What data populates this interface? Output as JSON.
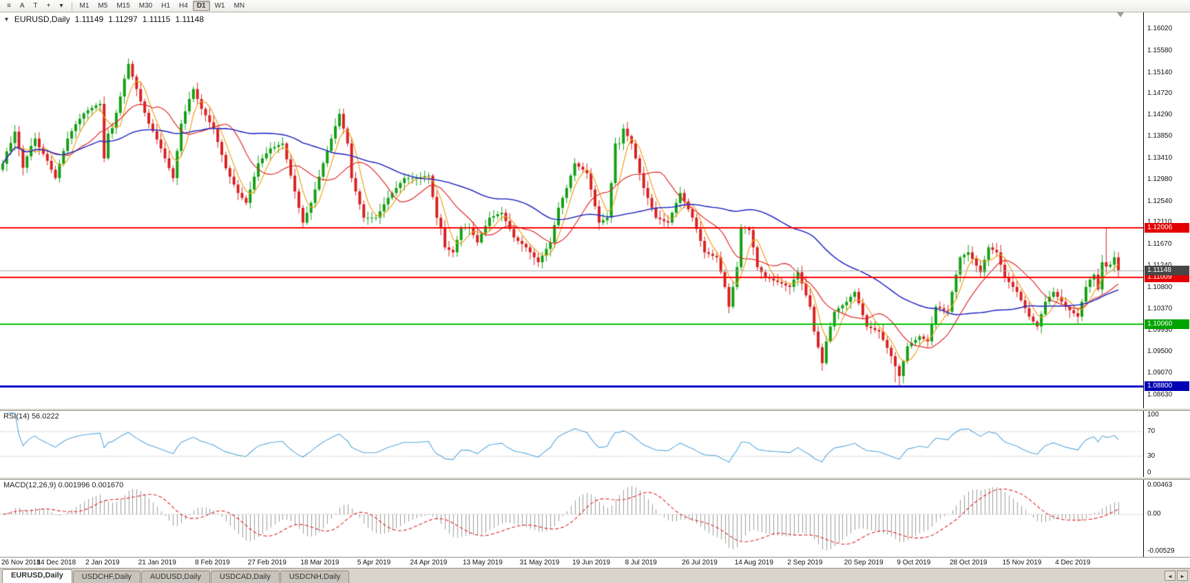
{
  "toolbar": {
    "buttons": [
      {
        "name": "menu",
        "glyph": "≡"
      },
      {
        "name": "cursor",
        "glyph": "A"
      },
      {
        "name": "text",
        "glyph": "T"
      },
      {
        "name": "draw",
        "glyph": "+"
      },
      {
        "name": "more",
        "glyph": "▾"
      }
    ],
    "timeframes": [
      "M1",
      "M5",
      "M15",
      "M30",
      "H1",
      "H4",
      "D1",
      "W1",
      "MN"
    ],
    "active_timeframe": "D1"
  },
  "header": {
    "collapse_glyph": "▼",
    "symbol": "EURUSD,Daily",
    "open": "1.11149",
    "high": "1.11297",
    "low": "1.11115",
    "close": "1.11148"
  },
  "price_axis": {
    "ticks": [
      "1.16020",
      "1.15580",
      "1.15140",
      "1.14720",
      "1.14290",
      "1.13850",
      "1.13410",
      "1.12980",
      "1.12540",
      "1.12110",
      "1.11670",
      "1.11240",
      "1.10800",
      "1.10370",
      "1.09930",
      "1.09500",
      "1.09070",
      "1.08630"
    ]
  },
  "hlines": [
    {
      "price": 1.12006,
      "label": "1.12006",
      "color": "#ff0000",
      "badge": "#e40000",
      "width": 2
    },
    {
      "price": 1.11009,
      "label": "1.11009",
      "color": "#ff0000",
      "badge": "#e40000",
      "width": 2
    },
    {
      "price": 1.1006,
      "label": "1.10060",
      "color": "#00c000",
      "badge": "#00a400",
      "width": 2
    },
    {
      "price": 1.088,
      "label": "1.08800",
      "color": "#0000c8",
      "badge": "#0000b4",
      "width": 3
    }
  ],
  "current_price": {
    "price": 1.11148,
    "label": "1.11148",
    "line_color": "#aaaaaa",
    "badge": "#464646"
  },
  "chart_data": {
    "type": "candlestick",
    "symbol": "EURUSD",
    "period": "Daily",
    "up_color": "#13a013",
    "down_color": "#d92222",
    "closes": [
      1.133,
      1.1355,
      1.1372,
      1.1395,
      1.136,
      1.1322,
      1.1345,
      1.1366,
      1.1381,
      1.1363,
      1.135,
      1.1336,
      1.1318,
      1.1301,
      1.133,
      1.1356,
      1.1381,
      1.1396,
      1.141,
      1.1421,
      1.1432,
      1.1438,
      1.1443,
      1.1448,
      1.1451,
      1.1341,
      1.1391,
      1.1402,
      1.1433,
      1.1466,
      1.1502,
      1.1532,
      1.1506,
      1.1481,
      1.1456,
      1.1433,
      1.1411,
      1.1396,
      1.1379,
      1.1361,
      1.1341,
      1.1321,
      1.1301,
      1.1356,
      1.1411,
      1.1436,
      1.1461,
      1.1481,
      1.1461,
      1.1441,
      1.1428,
      1.1414,
      1.1401,
      1.1374,
      1.1348,
      1.1321,
      1.1304,
      1.1288,
      1.1271,
      1.1261,
      1.1251,
      1.1278,
      1.1304,
      1.1331,
      1.1341,
      1.1351,
      1.1361,
      1.1364,
      1.1368,
      1.1371,
      1.1339,
      1.1306,
      1.1274,
      1.1241,
      1.1211,
      1.1231,
      1.1251,
      1.1278,
      1.1304,
      1.1331,
      1.1356,
      1.1381,
      1.1406,
      1.1431,
      1.1401,
      1.1371,
      1.1301,
      1.1274,
      1.1248,
      1.1221,
      1.1221,
      1.1221,
      1.1221,
      1.1234,
      1.1248,
      1.1261,
      1.1271,
      1.1281,
      1.1291,
      1.1301,
      1.1301,
      1.1301,
      1.1301,
      1.1303,
      1.1305,
      1.1306,
      1.1263,
      1.1221,
      1.1201,
      1.1161,
      1.1156,
      1.1151,
      1.1176,
      1.1201,
      1.1201,
      1.1201,
      1.1186,
      1.1171,
      1.1188,
      1.1204,
      1.1221,
      1.1224,
      1.1228,
      1.1231,
      1.1214,
      1.1198,
      1.1181,
      1.1174,
      1.1168,
      1.1161,
      1.1151,
      1.1141,
      1.1131,
      1.1144,
      1.1158,
      1.1171,
      1.1206,
      1.1241,
      1.1261,
      1.1281,
      1.1306,
      1.1331,
      1.1324,
      1.1318,
      1.1311,
      1.1278,
      1.1244,
      1.1211,
      1.1216,
      1.1221,
      1.1291,
      1.1371,
      1.1371,
      1.1401,
      1.1386,
      1.1371,
      1.1341,
      1.1311,
      1.1281,
      1.1261,
      1.1241,
      1.1221,
      1.1218,
      1.1214,
      1.1211,
      1.1231,
      1.1251,
      1.1271,
      1.1254,
      1.1238,
      1.1221,
      1.1198,
      1.1174,
      1.1151,
      1.1148,
      1.1144,
      1.1141,
      1.1111,
      1.1081,
      1.1041,
      1.1081,
      1.1121,
      1.1201,
      1.1201,
      1.1196,
      1.1161,
      1.1121,
      1.1111,
      1.1101,
      1.1098,
      1.1094,
      1.1091,
      1.1088,
      1.1084,
      1.1081,
      1.1096,
      1.1111,
      1.1088,
      1.1064,
      1.1041,
      1.0991,
      1.0959,
      1.0927,
      1.0971,
      1.1001,
      1.1031,
      1.1038,
      1.1044,
      1.1051,
      1.1061,
      1.1071,
      1.1048,
      1.1024,
      1.1001,
      1.0998,
      1.0994,
      1.0991,
      1.0974,
      1.0958,
      1.0941,
      1.0921,
      1.0901,
      1.0931,
      1.0961,
      1.0968,
      1.0974,
      1.0981,
      1.0976,
      1.0971,
      1.1006,
      1.1041,
      1.1038,
      1.1034,
      1.1031,
      1.1071,
      1.1106,
      1.1141,
      1.1146,
      1.1151,
      1.1138,
      1.1124,
      1.1111,
      1.1136,
      1.1161,
      1.1156,
      1.1151,
      1.1126,
      1.1101,
      1.1091,
      1.1081,
      1.1071,
      1.1054,
      1.1038,
      1.1021,
      1.1011,
      1.1001,
      1.1026,
      1.1051,
      1.1061,
      1.1071,
      1.1061,
      1.1051,
      1.1041,
      1.1034,
      1.1028,
      1.1021,
      1.1051,
      1.1081,
      1.1096,
      1.1106,
      1.1076,
      1.1131,
      1.1122,
      1.1126,
      1.1141,
      1.11148
    ],
    "wick_overrides": {
      "220": {
        "low": 1.0888
      },
      "221": {
        "low": 1.0879
      },
      "272": {
        "high": 1.11995
      }
    },
    "x_labels": [
      [
        "26 Nov 2018",
        0
      ],
      [
        "14 Dec 2018",
        14
      ],
      [
        "2 Jan 2019",
        26
      ],
      [
        "21 Jan 2019",
        39
      ],
      [
        "8 Feb 2019",
        53
      ],
      [
        "27 Feb 2019",
        66
      ],
      [
        "18 Mar 2019",
        79
      ],
      [
        "5 Apr 2019",
        93
      ],
      [
        "24 Apr 2019",
        106
      ],
      [
        "13 May 2019",
        119
      ],
      [
        "31 May 2019",
        133
      ],
      [
        "19 Jun 2019",
        146
      ],
      [
        "8 Jul 2019",
        159
      ],
      [
        "26 Jul 2019",
        173
      ],
      [
        "14 Aug 2019",
        186
      ],
      [
        "2 Sep 2019",
        199
      ],
      [
        "20 Sep 2019",
        213
      ],
      [
        "9 Oct 2019",
        226
      ],
      [
        "28 Oct 2019",
        239
      ],
      [
        "15 Nov 2019",
        252
      ],
      [
        "4 Dec 2019",
        265
      ]
    ],
    "moving_averages": [
      {
        "period": 5,
        "color": "#efa018"
      },
      {
        "period": 13,
        "color": "#e42424"
      },
      {
        "period": 50,
        "color": "#2a30c2"
      }
    ],
    "rsi": {
      "label": "RSI(14) 56.0222",
      "period": 14,
      "levels": [
        100,
        70,
        30,
        0
      ],
      "color": "#57a7dd"
    },
    "macd": {
      "label": "MACD(12,26,9) 0.001996 0.001670",
      "fast": 12,
      "slow": 26,
      "signal": 9,
      "axis_labels": [
        "0.00463",
        "0.00",
        "-0.00529"
      ],
      "hist_color": "#9a9a9a",
      "signal_color": "#e02020"
    }
  },
  "tabs": {
    "items": [
      "EURUSD,Daily",
      "USDCHF,Daily",
      "AUDUSD,Daily",
      "USDCAD,Daily",
      "USDCNH,Daily"
    ],
    "active_index": 0,
    "scroll_left_glyph": "◂",
    "scroll_right_glyph": "▸"
  }
}
